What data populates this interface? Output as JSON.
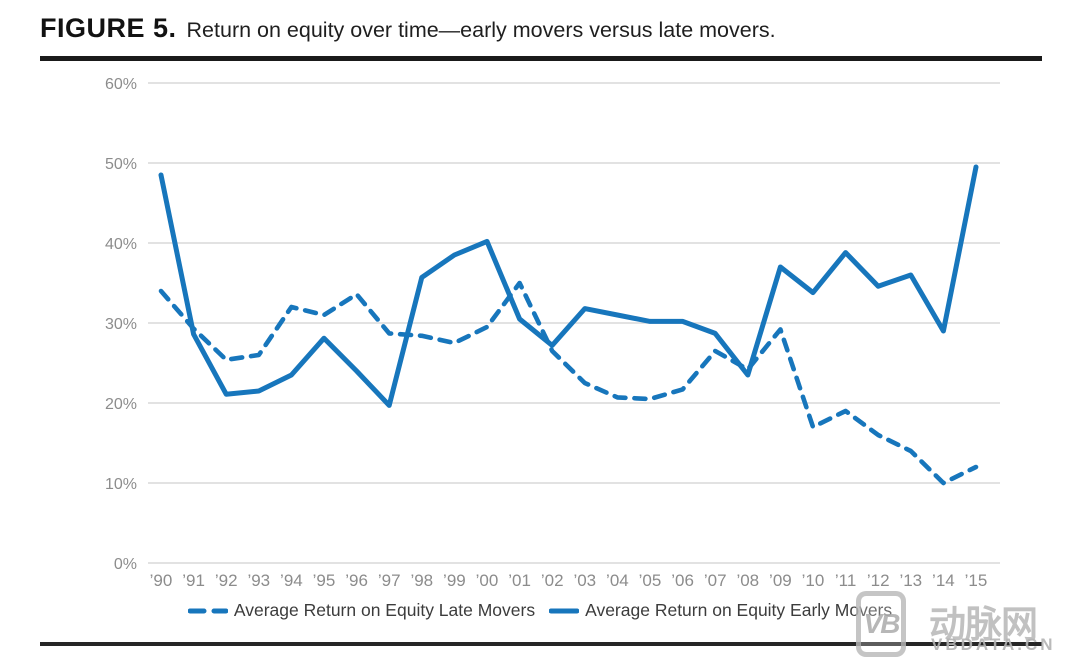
{
  "figure": {
    "label": "FIGURE 5.",
    "caption": "Return on equity over time—early movers versus late movers."
  },
  "watermark": {
    "logo_text": "VB",
    "site_name": "动脉网",
    "site_domain": "VBDATA.CN"
  },
  "colors": {
    "line_blue": "#1776bc",
    "gridline": "#d9d9d9",
    "axis_text": "#8c8c8c"
  },
  "chart_data": {
    "type": "line",
    "title": "Return on equity over time—early movers versus late movers.",
    "x_labels": [
      "’90",
      "’91",
      "’92",
      "’93",
      "’94",
      "’95",
      "’96",
      "’97",
      "’98",
      "’99",
      "’00",
      "’01",
      "’02",
      "’03",
      "’04",
      "’05",
      "’06",
      "’07",
      "’08",
      "’09",
      "’10",
      "’11",
      "’12",
      "’13",
      "’14",
      "’15"
    ],
    "y_tick_labels": [
      "0%",
      "10%",
      "20%",
      "30%",
      "40%",
      "50%",
      "60%"
    ],
    "y_ticks_percent": [
      0,
      10,
      20,
      30,
      40,
      50,
      60
    ],
    "ylim": [
      0,
      60
    ],
    "grid": true,
    "legend_position": "bottom",
    "series": [
      {
        "name": "Average Return on Equity Late Movers",
        "style": "dashed",
        "color": "#1776bc",
        "values": [
          34,
          29.3,
          25.4,
          26,
          32,
          31,
          33.6,
          28.7,
          28.4,
          27.5,
          29.5,
          35,
          26.5,
          22.5,
          20.7,
          20.5,
          21.7,
          26.5,
          24.2,
          29.2,
          17,
          19,
          16,
          14,
          10,
          12
        ]
      },
      {
        "name": "Average Return on Equity Early Movers",
        "style": "solid",
        "color": "#1776bc",
        "values": [
          48.5,
          28.6,
          21.1,
          21.5,
          23.5,
          28.1,
          24,
          19.7,
          35.7,
          38.5,
          40.2,
          30.5,
          27.2,
          31.8,
          31,
          30.2,
          30.2,
          28.7,
          23.5,
          37,
          33.8,
          38.8,
          34.6,
          36,
          29,
          49.5
        ]
      }
    ]
  }
}
